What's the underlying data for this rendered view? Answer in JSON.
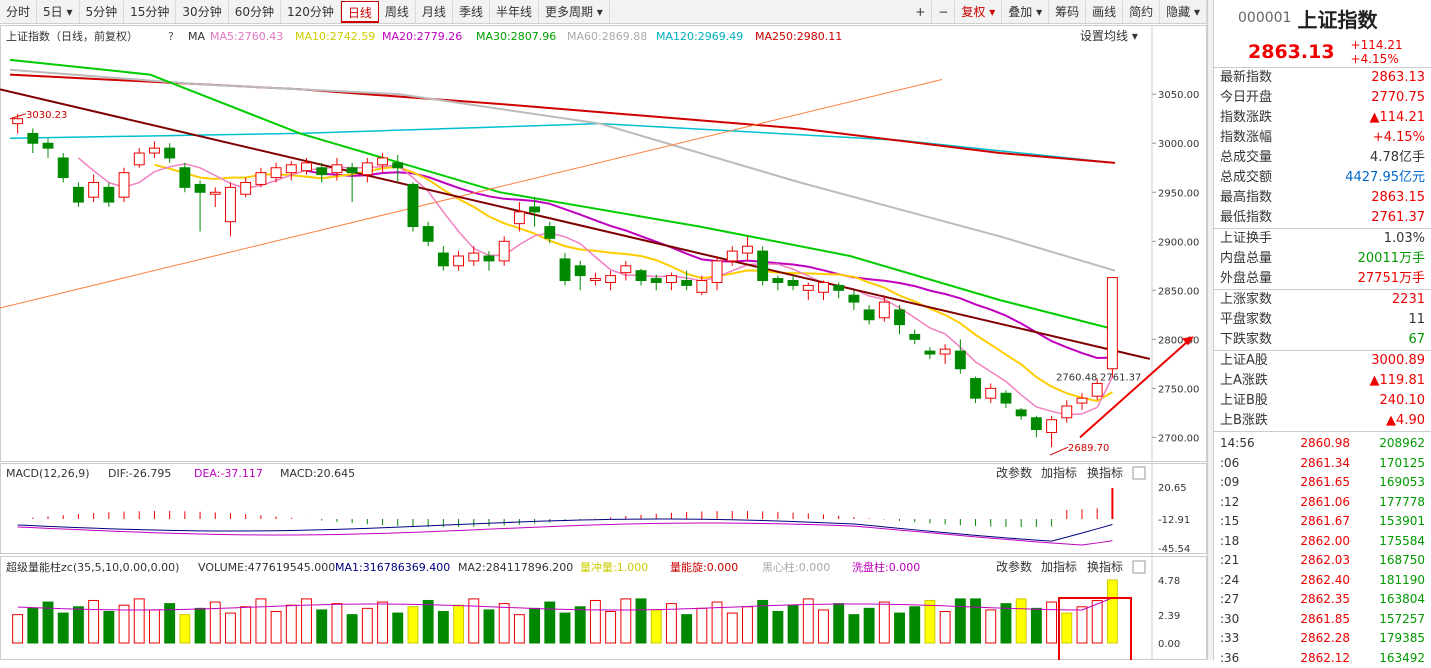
{
  "toolbar": {
    "left": [
      "分时",
      "5日",
      "5分钟",
      "15分钟",
      "30分钟",
      "60分钟",
      "120分钟",
      "日线",
      "周线",
      "月线",
      "季线",
      "半年线",
      "更多周期"
    ],
    "active": "日线",
    "right": [
      "+",
      "−",
      "复权",
      "叠加",
      "筹码",
      "画线",
      "简约",
      "隐藏"
    ]
  },
  "main_header": {
    "title": "上证指数（日线，前复权）",
    "ma_label": "MA",
    "ma5": "MA5:2760.43",
    "ma10": "MA10:2742.59",
    "ma20": "MA20:2779.26",
    "ma30": "MA30:2807.96",
    "ma60": "MA60:2869.88",
    "ma120": "MA120:2969.49",
    "ma250": "MA250:2980.11",
    "settings": "设置均线"
  },
  "price_axis": [
    "3050.00",
    "3000.00",
    "2950.00",
    "2900.00",
    "2850.00",
    "2800.00",
    "2750.00",
    "2700.00"
  ],
  "annotations": {
    "high": "3030.23",
    "low": "2689.70",
    "last": "2760.48",
    "last2": "2761.37"
  },
  "macd_header": {
    "label": "MACD(12,26,9)",
    "dif": "DIF:-26.795",
    "dea": "DEA:-37.117",
    "macd": "MACD:20.645",
    "btn1": "改参数",
    "btn2": "加指标",
    "btn3": "换指标"
  },
  "macd_axis": [
    "20.65",
    "-12.91",
    "-45.54"
  ],
  "vol_header": {
    "label": "超级量能柱zc(35,5,10,0.00,0.00)",
    "volume": "VOLUME:477619545.000",
    "ma1": "MA1:316786369.400",
    "ma2": "MA2:284117896.200",
    "c1": "量冲量:1.000",
    "c2": "量能旋:0.000",
    "c3": "黑心柱:0.000",
    "c4": "洗盘柱:0.000",
    "btn1": "改参数",
    "btn2": "加指标",
    "btn3": "换指标"
  },
  "vol_axis": [
    "4.78",
    "2.39",
    "0.00"
  ],
  "right_panel": {
    "code": "000001",
    "name": "上证指数",
    "price": "2863.13",
    "change": "+114.21",
    "change_pct": "+4.15%",
    "rows1": [
      {
        "label": "最新指数",
        "value": "2863.13",
        "cls": "red"
      },
      {
        "label": "今日开盘",
        "value": "2770.75",
        "cls": "red"
      },
      {
        "label": "指数涨跌",
        "value": "▲114.21",
        "cls": "red"
      },
      {
        "label": "指数涨幅",
        "value": "+4.15%",
        "cls": "red"
      },
      {
        "label": "总成交量",
        "value": "4.78亿手",
        "cls": ""
      },
      {
        "label": "总成交额",
        "value": "4427.95亿元",
        "cls": "blue"
      },
      {
        "label": "最高指数",
        "value": "2863.15",
        "cls": "red"
      },
      {
        "label": "最低指数",
        "value": "2761.37",
        "cls": "red"
      }
    ],
    "rows2": [
      {
        "label": "上证换手",
        "value": "1.03%",
        "cls": ""
      },
      {
        "label": "内盘总量",
        "value": "20011万手",
        "cls": "green"
      },
      {
        "label": "外盘总量",
        "value": "27751万手",
        "cls": "red"
      }
    ],
    "rows3": [
      {
        "label": "上涨家数",
        "value": "2231",
        "cls": "red"
      },
      {
        "label": "平盘家数",
        "value": "11",
        "cls": ""
      },
      {
        "label": "下跌家数",
        "value": "67",
        "cls": "green"
      }
    ],
    "rows4": [
      {
        "label": "上证A股",
        "value": "3000.89",
        "cls": "red"
      },
      {
        "label": "上A涨跌",
        "value": "▲119.81",
        "cls": "red"
      },
      {
        "label": "上证B股",
        "value": "240.10",
        "cls": "red"
      },
      {
        "label": "上B涨跌",
        "value": "▲4.90",
        "cls": "red"
      }
    ],
    "ticks": [
      {
        "t": "14:56",
        "p": "2860.98",
        "v": "208962"
      },
      {
        "t": ":06",
        "p": "2861.34",
        "v": "170125"
      },
      {
        "t": ":09",
        "p": "2861.65",
        "v": "169053"
      },
      {
        "t": ":12",
        "p": "2861.06",
        "v": "177778"
      },
      {
        "t": ":15",
        "p": "2861.67",
        "v": "153901"
      },
      {
        "t": ":18",
        "p": "2862.00",
        "v": "175584"
      },
      {
        "t": ":21",
        "p": "2862.03",
        "v": "168750"
      },
      {
        "t": ":24",
        "p": "2862.40",
        "v": "181190"
      },
      {
        "t": ":27",
        "p": "2862.35",
        "v": "163804"
      },
      {
        "t": ":30",
        "p": "2861.85",
        "v": "157257"
      },
      {
        "t": ":33",
        "p": "2862.28",
        "v": "179385"
      },
      {
        "t": ":36",
        "p": "2862.12",
        "v": "163492"
      }
    ]
  },
  "chart_data": {
    "type": "candlestick",
    "candles": [
      [
        3020,
        3025,
        3010,
        3030
      ],
      [
        3010,
        3000,
        2990,
        3015
      ],
      [
        3000,
        2995,
        2985,
        3005
      ],
      [
        2985,
        2965,
        2960,
        2990
      ],
      [
        2955,
        2940,
        2935,
        2960
      ],
      [
        2945,
        2960,
        2940,
        2968
      ],
      [
        2955,
        2940,
        2935,
        2960
      ],
      [
        2945,
        2970,
        2940,
        2975
      ],
      [
        2978,
        2990,
        2975,
        2995
      ],
      [
        2990,
        2995,
        2985,
        3002
      ],
      [
        2995,
        2985,
        2980,
        3000
      ],
      [
        2975,
        2955,
        2950,
        2980
      ],
      [
        2958,
        2950,
        2910,
        2962
      ],
      [
        2948,
        2950,
        2935,
        2955
      ],
      [
        2920,
        2955,
        2905,
        2960
      ],
      [
        2948,
        2960,
        2945,
        2965
      ],
      [
        2958,
        2970,
        2955,
        2975
      ],
      [
        2965,
        2975,
        2960,
        2980
      ],
      [
        2970,
        2978,
        2962,
        2982
      ],
      [
        2972,
        2980,
        2968,
        2985
      ],
      [
        2975,
        2968,
        2960,
        2980
      ],
      [
        2970,
        2978,
        2962,
        2985
      ],
      [
        2975,
        2970,
        2940,
        2980
      ],
      [
        2968,
        2980,
        2960,
        2985
      ],
      [
        2978,
        2985,
        2970,
        2990
      ],
      [
        2980,
        2975,
        2960,
        2988
      ],
      [
        2958,
        2915,
        2910,
        2960
      ],
      [
        2915,
        2900,
        2895,
        2920
      ],
      [
        2888,
        2875,
        2870,
        2895
      ],
      [
        2875,
        2885,
        2870,
        2890
      ],
      [
        2880,
        2888,
        2875,
        2895
      ],
      [
        2885,
        2880,
        2870,
        2890
      ],
      [
        2880,
        2900,
        2875,
        2905
      ],
      [
        2918,
        2930,
        2910,
        2940
      ],
      [
        2935,
        2930,
        2915,
        2945
      ],
      [
        2915,
        2903,
        2898,
        2920
      ],
      [
        2882,
        2860,
        2855,
        2888
      ],
      [
        2875,
        2865,
        2850,
        2880
      ],
      [
        2860,
        2862,
        2855,
        2868
      ],
      [
        2858,
        2865,
        2850,
        2870
      ],
      [
        2868,
        2875,
        2860,
        2880
      ],
      [
        2870,
        2860,
        2855,
        2872
      ],
      [
        2862,
        2858,
        2850,
        2866
      ],
      [
        2858,
        2865,
        2850,
        2868
      ],
      [
        2860,
        2855,
        2850,
        2870
      ],
      [
        2848,
        2860,
        2845,
        2865
      ],
      [
        2858,
        2880,
        2850,
        2885
      ],
      [
        2880,
        2890,
        2875,
        2895
      ],
      [
        2888,
        2895,
        2880,
        2905
      ],
      [
        2890,
        2860,
        2855,
        2895
      ],
      [
        2862,
        2858,
        2850,
        2865
      ],
      [
        2860,
        2855,
        2850,
        2865
      ],
      [
        2850,
        2855,
        2840,
        2858
      ],
      [
        2848,
        2858,
        2840,
        2860
      ],
      [
        2855,
        2850,
        2842,
        2858
      ],
      [
        2845,
        2838,
        2830,
        2850
      ],
      [
        2830,
        2820,
        2815,
        2835
      ],
      [
        2822,
        2838,
        2818,
        2845
      ],
      [
        2830,
        2815,
        2805,
        2835
      ],
      [
        2805,
        2800,
        2795,
        2810
      ],
      [
        2788,
        2785,
        2780,
        2792
      ],
      [
        2785,
        2790,
        2775,
        2795
      ],
      [
        2788,
        2770,
        2765,
        2800
      ],
      [
        2760,
        2740,
        2735,
        2762
      ],
      [
        2740,
        2750,
        2735,
        2755
      ],
      [
        2745,
        2735,
        2730,
        2748
      ],
      [
        2728,
        2722,
        2718,
        2730
      ],
      [
        2720,
        2708,
        2700,
        2722
      ],
      [
        2705,
        2718,
        2690,
        2722
      ],
      [
        2720,
        2732,
        2715,
        2738
      ],
      [
        2735,
        2740,
        2728,
        2745
      ],
      [
        2742,
        2755,
        2738,
        2760
      ],
      [
        2770,
        2863,
        2761,
        2863
      ]
    ],
    "price_range": [
      2680,
      3090
    ]
  }
}
